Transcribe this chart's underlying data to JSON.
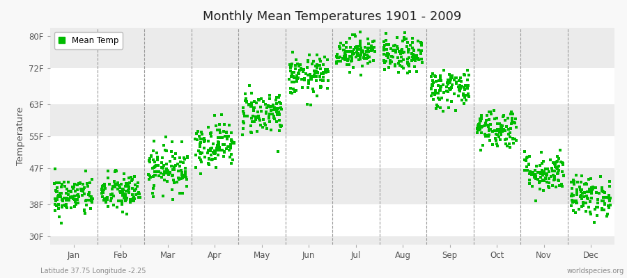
{
  "title": "Monthly Mean Temperatures 1901 - 2009",
  "ylabel": "Temperature",
  "xlabel_labels": [
    "Jan",
    "Feb",
    "Mar",
    "Apr",
    "May",
    "Jun",
    "Jul",
    "Aug",
    "Sep",
    "Oct",
    "Nov",
    "Dec"
  ],
  "ytick_labels": [
    "30F",
    "38F",
    "47F",
    "55F",
    "63F",
    "72F",
    "80F"
  ],
  "ytick_values": [
    30,
    38,
    47,
    55,
    63,
    72,
    80
  ],
  "ylim": [
    28,
    82
  ],
  "legend_label": "Mean Temp",
  "dot_color": "#00bb00",
  "fig_bg_color": "#f8f8f8",
  "band_colors": [
    "#ffffff",
    "#ebebeb",
    "#ffffff",
    "#ebebeb",
    "#ffffff",
    "#ebebeb"
  ],
  "footer_left": "Latitude 37.75 Longitude -2.25",
  "footer_right": "worldspecies.org",
  "monthly_means_f": [
    40,
    41,
    47,
    53,
    61,
    70,
    76,
    75,
    67,
    57,
    46,
    40
  ],
  "monthly_std_f": [
    2.5,
    2.5,
    2.8,
    2.8,
    2.8,
    2.5,
    2.0,
    2.2,
    2.5,
    2.5,
    2.5,
    2.5
  ],
  "n_years": 109,
  "seed": 42
}
